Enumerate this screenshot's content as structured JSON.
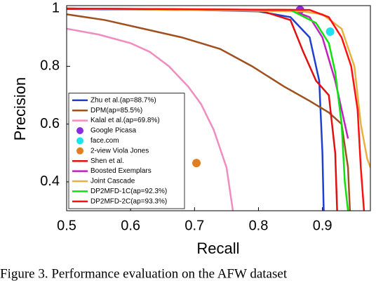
{
  "chart_data": {
    "type": "line",
    "xlabel": "Recall",
    "ylabel": "Precision",
    "caption": "Figure 3. Performance evaluation on the AFW dataset",
    "xlim": [
      0.5,
      0.975
    ],
    "ylim": [
      0.3,
      1.01
    ],
    "xticks": [
      0.5,
      0.6,
      0.7,
      0.8,
      0.9
    ],
    "yticks": [
      0.4,
      0.6,
      0.8,
      1
    ],
    "grid": false,
    "legend": "lower left",
    "series": [
      {
        "name": "Zhu et al.(ap=88.7%)",
        "kind": "line",
        "color": "#1f3fd0",
        "x": [
          0.5,
          0.7,
          0.8,
          0.85,
          0.88,
          0.895,
          0.9,
          0.902
        ],
        "values": [
          0.998,
          0.995,
          0.99,
          0.97,
          0.9,
          0.75,
          0.5,
          0.3
        ]
      },
      {
        "name": "DPM(ap=85.5%)",
        "kind": "line",
        "color": "#a0501e",
        "x": [
          0.5,
          0.56,
          0.62,
          0.68,
          0.74,
          0.79,
          0.84,
          0.88,
          0.91,
          0.93,
          0.94,
          0.943
        ],
        "values": [
          0.98,
          0.96,
          0.93,
          0.9,
          0.86,
          0.8,
          0.73,
          0.68,
          0.64,
          0.6,
          0.45,
          0.3
        ]
      },
      {
        "name": "Kalal et al.(ap=69.8%)",
        "kind": "line",
        "color": "#f08cc0",
        "x": [
          0.5,
          0.55,
          0.6,
          0.63,
          0.66,
          0.69,
          0.71,
          0.73,
          0.75,
          0.76
        ],
        "values": [
          0.93,
          0.91,
          0.88,
          0.85,
          0.8,
          0.73,
          0.67,
          0.58,
          0.45,
          0.3
        ]
      },
      {
        "name": "Google Picasa",
        "kind": "scatter",
        "color": "#8a2be2",
        "x": [
          0.865
        ],
        "values": [
          0.995
        ]
      },
      {
        "name": "face.com",
        "kind": "scatter",
        "color": "#20e0f0",
        "x": [
          0.912
        ],
        "values": [
          0.92
        ]
      },
      {
        "name": "2-view Viola Jones",
        "kind": "scatter",
        "color": "#e07f20",
        "x": [
          0.703
        ],
        "values": [
          0.465
        ]
      },
      {
        "name": "Shen et al.",
        "kind": "line",
        "color": "#e01010",
        "x": [
          0.5,
          0.8,
          0.85,
          0.87,
          0.89,
          0.91,
          0.92,
          0.923
        ],
        "values": [
          1,
          0.995,
          0.96,
          0.85,
          0.75,
          0.7,
          0.5,
          0.3
        ]
      },
      {
        "name": "Boosted Exemplars",
        "kind": "line",
        "color": "#c020c0",
        "x": [
          0.5,
          0.85,
          0.88,
          0.9,
          0.92,
          0.935,
          0.94
        ],
        "values": [
          1,
          0.995,
          0.97,
          0.9,
          0.75,
          0.6,
          0.55
        ]
      },
      {
        "name": "Joint Cascade",
        "kind": "line",
        "color": "#e8b040",
        "x": [
          0.5,
          0.87,
          0.9,
          0.93,
          0.95,
          0.96,
          0.97,
          0.975
        ],
        "values": [
          1,
          0.99,
          0.98,
          0.93,
          0.8,
          0.6,
          0.48,
          0.45
        ]
      },
      {
        "name": "DP2MFD-1C(ap=92.3%)",
        "kind": "line",
        "color": "#10e010",
        "x": [
          0.5,
          0.85,
          0.89,
          0.91,
          0.92,
          0.93,
          0.935,
          0.94
        ],
        "values": [
          1,
          0.995,
          0.95,
          0.88,
          0.78,
          0.6,
          0.4,
          0.3
        ]
      },
      {
        "name": "DP2MFD-2C(ap=93.3%)",
        "kind": "line",
        "color": "#ff1010",
        "x": [
          0.5,
          0.88,
          0.91,
          0.93,
          0.945,
          0.955,
          0.96,
          0.965
        ],
        "values": [
          1,
          0.995,
          0.97,
          0.9,
          0.8,
          0.65,
          0.45,
          0.3
        ]
      }
    ]
  }
}
